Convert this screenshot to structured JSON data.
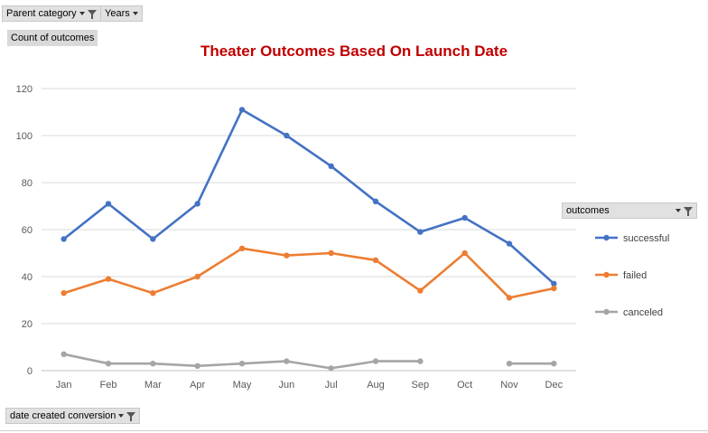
{
  "filters": {
    "parent_category": "Parent category",
    "years": "Years",
    "values_field": "Count of outcomes",
    "legend_field": "outcomes",
    "axis_field": "date created conversion"
  },
  "chart_data": {
    "type": "line",
    "title": "Theater Outcomes Based On Launch Date",
    "categories": [
      "Jan",
      "Feb",
      "Mar",
      "Apr",
      "May",
      "Jun",
      "Jul",
      "Aug",
      "Sep",
      "Oct",
      "Nov",
      "Dec"
    ],
    "series": [
      {
        "name": "successful",
        "color": "#4472c4",
        "values": [
          56,
          71,
          56,
          71,
          111,
          100,
          87,
          72,
          59,
          65,
          54,
          37
        ]
      },
      {
        "name": "failed",
        "color": "#ed7d31",
        "values": [
          33,
          39,
          33,
          40,
          52,
          49,
          50,
          47,
          34,
          50,
          31,
          35
        ]
      },
      {
        "name": "canceled",
        "color": "#a5a5a5",
        "values": [
          7,
          3,
          3,
          2,
          3,
          4,
          1,
          4,
          4,
          null,
          3,
          3
        ]
      }
    ],
    "ylim": [
      0,
      120
    ],
    "yticks": [
      0,
      20,
      40,
      60,
      80,
      100,
      120
    ],
    "grid": true,
    "legend_position": "right"
  }
}
